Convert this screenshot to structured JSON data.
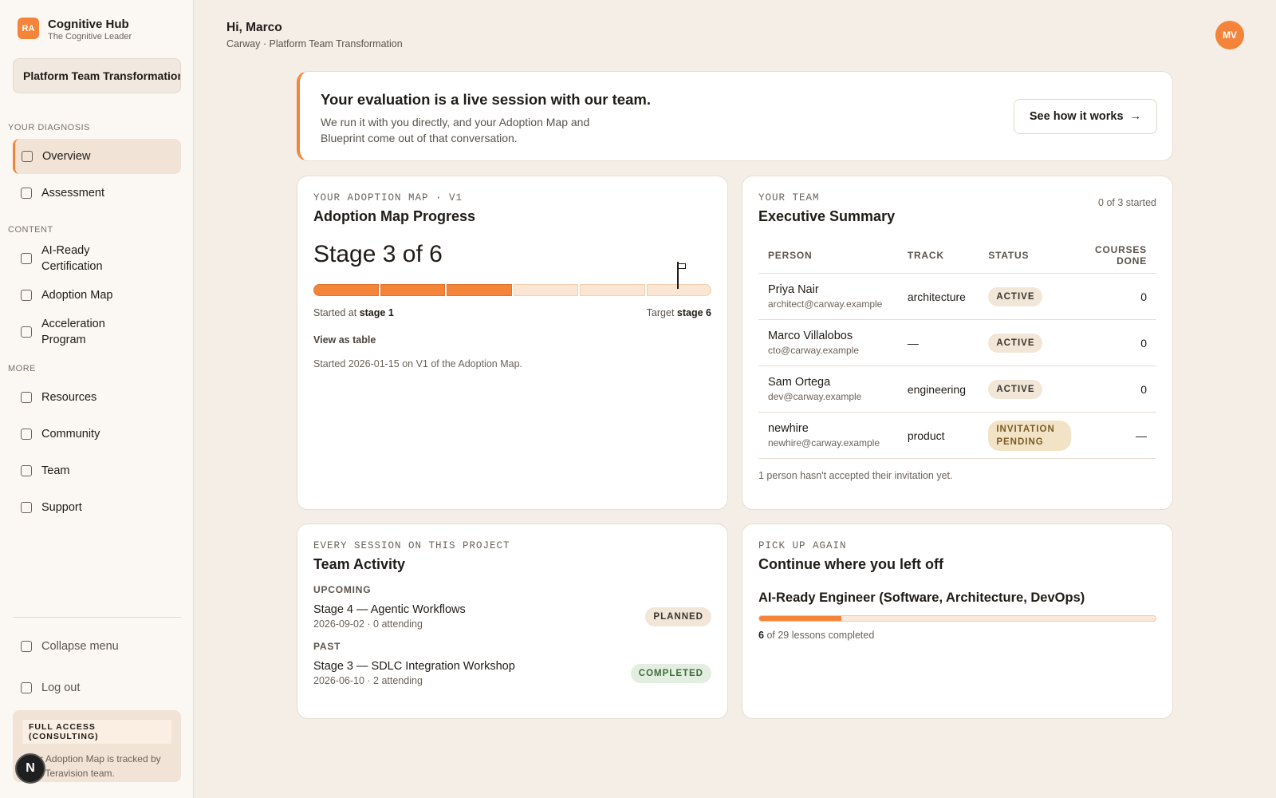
{
  "sidebar": {
    "brand": {
      "badge": "RA",
      "name": "Cognitive Hub",
      "tagline": "The Cognitive Leader"
    },
    "project_select": "Platform Team Transformation",
    "sections": [
      {
        "heading": "YOUR DIAGNOSIS",
        "items": [
          "Overview",
          "Assessment"
        ]
      },
      {
        "heading": "CONTENT",
        "items": [
          "AI-Ready Certification",
          "Adoption Map",
          "Acceleration Program"
        ]
      },
      {
        "heading": "MORE",
        "items": [
          "Resources",
          "Community",
          "Team",
          "Support"
        ]
      }
    ],
    "footer": {
      "collapse": "Collapse menu",
      "logout": "Log out",
      "access_badge": "FULL ACCESS (CONSULTING)",
      "access_text": "Your Adoption Map is tracked by your Teravision team.",
      "fab": "N"
    }
  },
  "header": {
    "greeting": "Hi, Marco",
    "subtitle": "Carway · Platform Team Transformation",
    "avatar": "MV"
  },
  "banner": {
    "title": "Your evaluation is a live session with our team.",
    "text": "We run it with you directly, and your Adoption Map and Blueprint come out of that conversation.",
    "button": "See how it works"
  },
  "adoption_map": {
    "eyebrow": "YOUR ADOPTION MAP · V1",
    "title": "Adoption Map Progress",
    "stage": {
      "prefix": "Stage",
      "current": 3,
      "of": "of",
      "total": 6
    },
    "started_label": "Started at",
    "started_stage": "stage 1",
    "target_label": "Target",
    "target_stage": "stage 6",
    "link": "View as table",
    "note": "Started 2026-01-15 on V1 of the Adoption Map."
  },
  "team": {
    "eyebrow": "YOUR TEAM",
    "title": "Executive Summary",
    "count": "0 of 3 started",
    "columns": [
      "PERSON",
      "TRACK",
      "STATUS",
      "COURSES DONE"
    ],
    "rows": [
      {
        "name": "Priya Nair",
        "email": "architect@carway.example",
        "track": "architecture",
        "status": "ACTIVE",
        "courses": 0
      },
      {
        "name": "Marco Villalobos",
        "email": "cto@carway.example",
        "track": "—",
        "status": "ACTIVE",
        "courses": 0
      },
      {
        "name": "Sam Ortega",
        "email": "dev@carway.example",
        "track": "engineering",
        "status": "ACTIVE",
        "courses": 0
      },
      {
        "name": "newhire",
        "email": "newhire@carway.example",
        "track": "product",
        "status": "INVITATION PENDING",
        "courses": "—"
      }
    ],
    "footnote": "1 person hasn't accepted their invitation yet."
  },
  "activity": {
    "eyebrow": "EVERY SESSION ON THIS PROJECT",
    "title": "Team Activity",
    "groups": [
      {
        "heading": "UPCOMING",
        "items": [
          {
            "title": "Stage 4 — Agentic Workflows",
            "meta": "2026-09-02 · 0 attending",
            "status": "PLANNED"
          }
        ]
      },
      {
        "heading": "PAST",
        "items": [
          {
            "title": "Stage 3 — SDLC Integration Workshop",
            "meta": "2026-06-10 · 2 attending",
            "status": "COMPLETED"
          }
        ]
      }
    ]
  },
  "continue": {
    "eyebrow": "PICK UP AGAIN",
    "title": "Continue where you left off",
    "course": "AI-Ready Engineer (Software, Architecture, DevOps)",
    "progress": {
      "done": 6,
      "of": "of",
      "total": 29,
      "suffix": "lessons completed"
    }
  }
}
